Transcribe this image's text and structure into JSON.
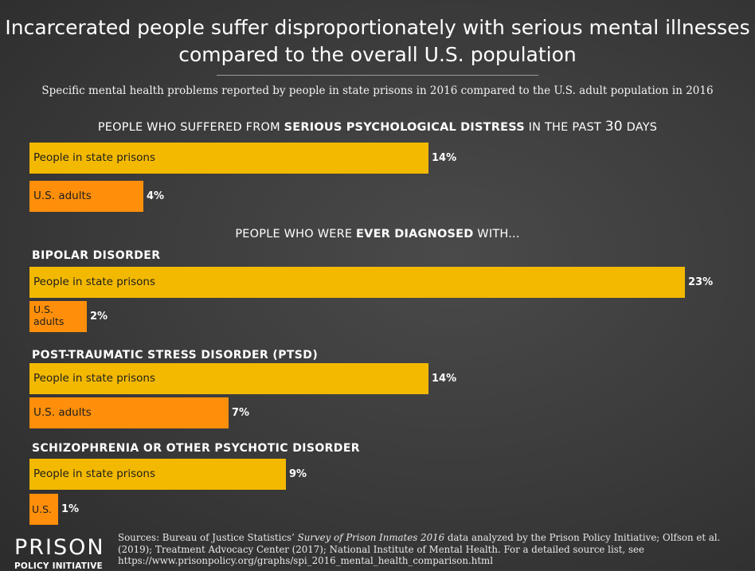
{
  "title_line1": "Incarcerated people suffer disproportionately with serious mental illnesses",
  "title_line2": "compared to the overall U.S. population",
  "subtitle": "Specific mental health problems reported by people in state prisons in 2016 compared to the U.S. adult population in 2016",
  "heading1": {
    "prefix": "PEOPLE WHO SUFFERED FROM ",
    "bold": "SERIOUS PSYCHOLOGICAL DISTRESS",
    "mid": " IN THE PAST ",
    "num": "30",
    "suffix": " DAYS"
  },
  "heading2": {
    "prefix": "PEOPLE WHO WERE ",
    "bold": "EVER DIAGNOSED",
    "suffix": " WITH..."
  },
  "colors": {
    "prison": "#f3b900",
    "adults": "#ff8f0a",
    "background": "#3a3a3a"
  },
  "chart_data": {
    "type": "bar",
    "orientation": "horizontal",
    "unit": "%",
    "xlim": [
      0,
      23
    ],
    "series": [
      {
        "name": "People in state prisons",
        "color": "#f3b900"
      },
      {
        "name": "U.S. adults",
        "color": "#ff8f0a"
      }
    ],
    "groups": [
      {
        "key": "distress",
        "label": "",
        "prison": {
          "label": "People in state prisons",
          "value": 14,
          "display": "14%"
        },
        "adults": {
          "label": "U.S. adults",
          "value": 4,
          "display": "4%"
        }
      },
      {
        "key": "bipolar",
        "label": "BIPOLAR DISORDER",
        "prison": {
          "label": "People in state prisons",
          "value": 23,
          "display": "23%"
        },
        "adults": {
          "label": "U.S. adults",
          "value": 2,
          "display": "2%"
        }
      },
      {
        "key": "ptsd",
        "label": "POST-TRAUMATIC STRESS DISORDER (PTSD)",
        "prison": {
          "label": "People in state prisons",
          "value": 14,
          "display": "14%"
        },
        "adults": {
          "label": "U.S. adults",
          "value": 7,
          "display": "7%"
        }
      },
      {
        "key": "schizo",
        "label": "SCHIZOPHRENIA OR OTHER PSYCHOTIC DISORDER",
        "prison": {
          "label": "People in state prisons",
          "value": 9,
          "display": "9%"
        },
        "adults": {
          "label": "U.S.",
          "value": 1,
          "display": "1%"
        }
      }
    ]
  },
  "logo": {
    "name": "PRISON",
    "subtitle": "POLICY INITIATIVE"
  },
  "sources": {
    "prefix": "Sources: Bureau of Justice Statistics’ ",
    "italic": "Survey of Prison Inmates 2016",
    "rest": " data analyzed by the Prison Policy Initiative; Olfson et al. (2019); Treatment Advocacy Center (2017); National Institute of Mental Health. For a detailed source list, see https://www.prisonpolicy.org/graphs/spi_2016_mental_health_comparison.html"
  }
}
